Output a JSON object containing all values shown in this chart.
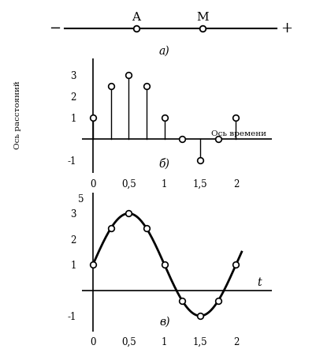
{
  "part_a": {
    "label": "а)"
  },
  "part_b": {
    "points_t": [
      0,
      0.25,
      0.5,
      0.75,
      1.0,
      1.25,
      1.5,
      1.75,
      2.0
    ],
    "points_s": [
      1,
      2.5,
      3,
      2.5,
      1,
      0,
      -1,
      0,
      1
    ],
    "xlabel": "Ось времени",
    "ylabel": "Ось расстояний",
    "xticks": [
      0,
      0.5,
      1,
      1.5,
      2
    ],
    "yticks": [
      -1,
      1,
      2,
      3
    ],
    "xlim": [
      -0.15,
      2.5
    ],
    "ylim": [
      -1.6,
      3.8
    ],
    "label": "б)"
  },
  "part_c": {
    "points_t": [
      0,
      0.25,
      0.5,
      0.75,
      1.0,
      1.25,
      1.5,
      1.75,
      2.0
    ],
    "xlabel": "t",
    "xticks": [
      0,
      0.5,
      1,
      1.5,
      2
    ],
    "yticks": [
      -1,
      1,
      2,
      3
    ],
    "xlim": [
      -0.15,
      2.5
    ],
    "ylim": [
      -1.6,
      3.8
    ],
    "label": "в)",
    "y5_label": "5"
  },
  "bg_color": "#ffffff",
  "line_color": "#000000",
  "marker_color": "#ffffff",
  "marker_edge_color": "#000000"
}
